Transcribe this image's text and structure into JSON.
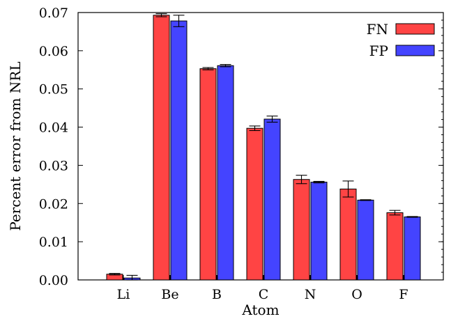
{
  "chart_data": {
    "type": "bar",
    "title": "",
    "xlabel": "Atom",
    "ylabel": "Percent error from NRL",
    "ylim": [
      0,
      0.07
    ],
    "yticks": [
      "0.00",
      "0.01",
      "0.02",
      "0.03",
      "0.04",
      "0.05",
      "0.06",
      "0.07"
    ],
    "categories": [
      "Li",
      "Be",
      "B",
      "C",
      "N",
      "O",
      "F"
    ],
    "series": [
      {
        "name": "FN",
        "color": "#ff4444",
        "values": [
          0.0015,
          0.0693,
          0.0553,
          0.0397,
          0.0263,
          0.0238,
          0.0176
        ],
        "errors": [
          0.0002,
          0.0004,
          0.0003,
          0.0006,
          0.0011,
          0.0021,
          0.0006
        ]
      },
      {
        "name": "FP",
        "color": "#4444ff",
        "values": [
          0.0005,
          0.0678,
          0.0561,
          0.0421,
          0.0256,
          0.0209,
          0.0165
        ],
        "errors": [
          0.0007,
          0.0015,
          0.0003,
          0.0008,
          0.0002,
          0.0001,
          0.0001
        ]
      }
    ],
    "legend": "top-right",
    "grid": false
  }
}
